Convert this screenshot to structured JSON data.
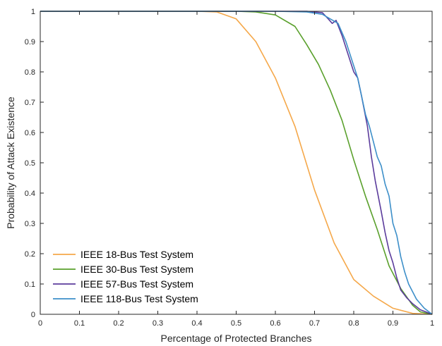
{
  "chart_data": {
    "type": "line",
    "xlabel": "Percentage of Protected Branches",
    "ylabel": "Probability of Attack Existence",
    "xlim": [
      0,
      1
    ],
    "ylim": [
      0,
      1
    ],
    "xticks": [
      "0",
      "0.1",
      "0.2",
      "0.3",
      "0.4",
      "0.5",
      "0.6",
      "0.7",
      "0.8",
      "0.9",
      "1"
    ],
    "yticks": [
      "0",
      "0.1",
      "0.2",
      "0.3",
      "0.4",
      "0.5",
      "0.6",
      "0.7",
      "0.8",
      "0.9",
      "1"
    ],
    "grid": false,
    "legend_position": "bottom-left",
    "series": [
      {
        "name": "IEEE 18-Bus Test System",
        "color": "#f5a84a",
        "x": [
          0,
          0.3,
          0.4,
          0.45,
          0.5,
          0.55,
          0.6,
          0.65,
          0.7,
          0.75,
          0.8,
          0.85,
          0.9,
          0.95,
          1.0
        ],
        "y": [
          1,
          1,
          1,
          0.998,
          0.975,
          0.9,
          0.78,
          0.62,
          0.41,
          0.235,
          0.115,
          0.06,
          0.02,
          0.003,
          0
        ]
      },
      {
        "name": "IEEE 30-Bus Test System",
        "color": "#5aa02c",
        "x": [
          0,
          0.4,
          0.5,
          0.55,
          0.6,
          0.65,
          0.68,
          0.71,
          0.74,
          0.77,
          0.8,
          0.83,
          0.86,
          0.89,
          0.92,
          0.95,
          0.97,
          1.0
        ],
        "y": [
          1,
          1,
          1,
          0.998,
          0.988,
          0.95,
          0.89,
          0.825,
          0.74,
          0.64,
          0.51,
          0.39,
          0.28,
          0.16,
          0.085,
          0.03,
          0.008,
          0
        ]
      },
      {
        "name": "IEEE 57-Bus Test System",
        "color": "#5b3c9c",
        "x": [
          0,
          0.5,
          0.6,
          0.68,
          0.72,
          0.735,
          0.745,
          0.755,
          0.77,
          0.785,
          0.8,
          0.81,
          0.82,
          0.835,
          0.845,
          0.855,
          0.87,
          0.88,
          0.89,
          0.9,
          0.91,
          0.92,
          0.935,
          0.95,
          0.97,
          0.99,
          1.0
        ],
        "y": [
          1,
          1,
          1,
          1,
          0.995,
          0.975,
          0.96,
          0.97,
          0.92,
          0.86,
          0.8,
          0.78,
          0.72,
          0.62,
          0.52,
          0.44,
          0.34,
          0.27,
          0.21,
          0.17,
          0.12,
          0.08,
          0.055,
          0.035,
          0.015,
          0.005,
          0
        ]
      },
      {
        "name": "IEEE 118-Bus Test System",
        "color": "#3d8fc9",
        "x": [
          0,
          0.5,
          0.6,
          0.68,
          0.72,
          0.74,
          0.76,
          0.78,
          0.8,
          0.81,
          0.82,
          0.83,
          0.84,
          0.85,
          0.86,
          0.87,
          0.88,
          0.89,
          0.9,
          0.91,
          0.92,
          0.93,
          0.94,
          0.96,
          0.98,
          1.0
        ],
        "y": [
          1,
          1,
          1,
          0.998,
          0.99,
          0.975,
          0.96,
          0.9,
          0.82,
          0.78,
          0.72,
          0.66,
          0.62,
          0.57,
          0.52,
          0.49,
          0.43,
          0.39,
          0.3,
          0.26,
          0.19,
          0.14,
          0.1,
          0.05,
          0.02,
          0
        ]
      }
    ]
  }
}
